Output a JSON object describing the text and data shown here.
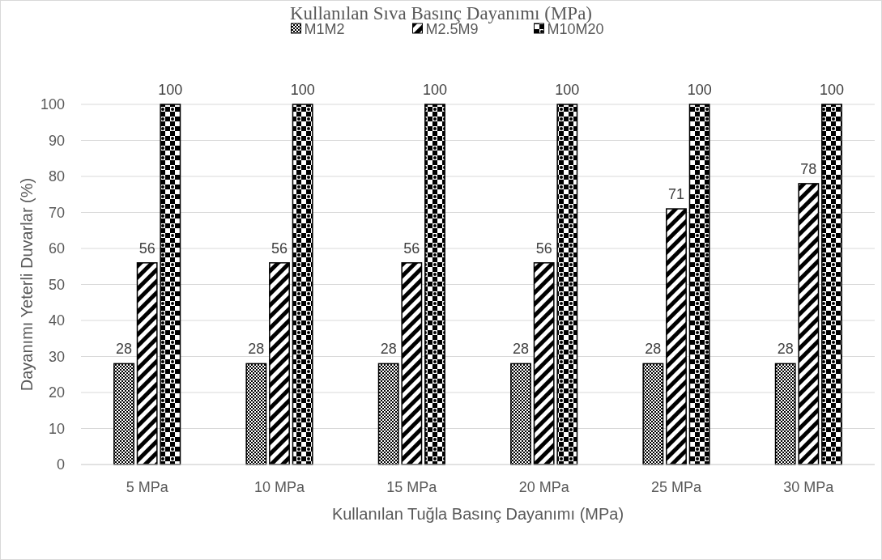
{
  "chart_data": {
    "type": "bar",
    "title": "Kullanılan Sıva Basınç Dayanımı (MPa)",
    "xlabel": "Kullanılan Tuğla Basınç Dayanımı (MPa)",
    "ylabel": "Dayanımı Yeterli Duvarlar (%)",
    "categories": [
      "5 MPa",
      "10 MPa",
      "15 MPa",
      "20 MPa",
      "25 MPa",
      "30 MPa"
    ],
    "series": [
      {
        "name": "M1M2",
        "color": "#000000",
        "values": [
          28,
          28,
          28,
          28,
          28,
          28
        ]
      },
      {
        "name": "M2.5M9",
        "color": "#000000",
        "values": [
          56,
          56,
          56,
          56,
          71,
          78
        ]
      },
      {
        "name": "M10M20",
        "color": "#000000",
        "values": [
          100,
          100,
          100,
          100,
          100,
          100
        ]
      }
    ],
    "ylim": [
      0,
      100
    ],
    "yticks": [
      0,
      10,
      20,
      30,
      40,
      50,
      60,
      70,
      80,
      90,
      100
    ],
    "grid": "y",
    "legend": "top",
    "data_labels": true
  }
}
